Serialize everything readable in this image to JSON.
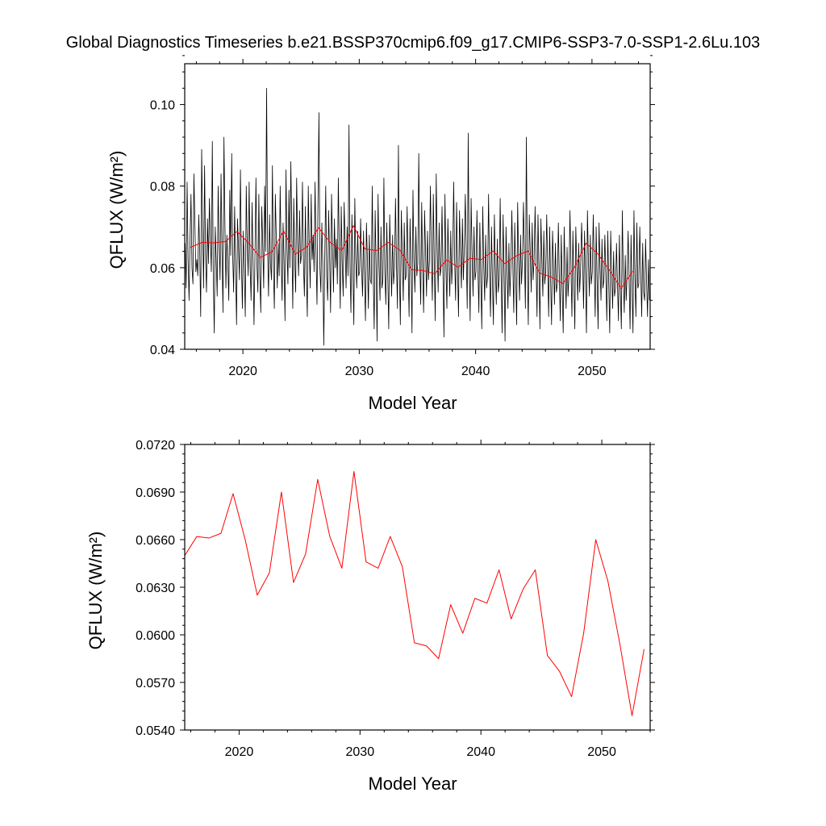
{
  "title": "Global Diagnostics Timeseries b.e21.BSSP370cmip6.f09_g17.CMIP6-SSP3-7.0-SSP1-2.6Lu.103",
  "colors": {
    "monthly": "#000000",
    "annual": "#ff0000",
    "frame": "#000000"
  },
  "chart_data": [
    {
      "type": "line",
      "xlabel": "Model Year",
      "ylabel": "QFLUX (W/m²)",
      "xlim": [
        2015,
        2055
      ],
      "ylim": [
        0.04,
        0.11
      ],
      "x_ticks": [
        2020,
        2030,
        2040,
        2050
      ],
      "y_ticks": [
        0.04,
        0.06,
        0.08,
        0.1
      ],
      "y_tick_labels": [
        "0.04",
        "0.06",
        "0.08",
        "0.10"
      ],
      "series": [
        {
          "color": "#000000",
          "x_start": 2015.04,
          "x_step": 0.0833,
          "values": [
            0.066,
            0.055,
            0.081,
            0.062,
            0.052,
            0.067,
            0.078,
            0.06,
            0.056,
            0.083,
            0.071,
            0.059,
            0.062,
            0.058,
            0.073,
            0.064,
            0.048,
            0.089,
            0.07,
            0.055,
            0.085,
            0.063,
            0.054,
            0.072,
            0.061,
            0.077,
            0.067,
            0.059,
            0.091,
            0.058,
            0.044,
            0.07,
            0.062,
            0.053,
            0.08,
            0.066,
            0.057,
            0.083,
            0.064,
            0.049,
            0.092,
            0.071,
            0.055,
            0.068,
            0.061,
            0.052,
            0.079,
            0.063,
            0.088,
            0.063,
            0.054,
            0.075,
            0.06,
            0.046,
            0.072,
            0.065,
            0.057,
            0.084,
            0.062,
            0.05,
            0.069,
            0.06,
            0.048,
            0.08,
            0.066,
            0.058,
            0.081,
            0.06,
            0.052,
            0.076,
            0.062,
            0.046,
            0.063,
            0.082,
            0.061,
            0.054,
            0.078,
            0.058,
            0.049,
            0.075,
            0.066,
            0.055,
            0.08,
            0.064,
            0.104,
            0.065,
            0.053,
            0.073,
            0.061,
            0.057,
            0.085,
            0.06,
            0.05,
            0.078,
            0.067,
            0.055,
            0.066,
            0.058,
            0.08,
            0.063,
            0.052,
            0.071,
            0.061,
            0.047,
            0.084,
            0.065,
            0.056,
            0.079,
            0.06,
            0.086,
            0.068,
            0.05,
            0.077,
            0.062,
            0.054,
            0.082,
            0.066,
            0.058,
            0.074,
            0.061,
            0.063,
            0.081,
            0.061,
            0.053,
            0.075,
            0.059,
            0.048,
            0.08,
            0.065,
            0.055,
            0.078,
            0.062,
            0.068,
            0.059,
            0.081,
            0.063,
            0.051,
            0.076,
            0.098,
            0.06,
            0.054,
            0.071,
            0.061,
            0.041,
            0.062,
            0.08,
            0.058,
            0.052,
            0.074,
            0.063,
            0.049,
            0.078,
            0.066,
            0.054,
            0.072,
            0.06,
            0.067,
            0.056,
            0.082,
            0.064,
            0.05,
            0.075,
            0.061,
            0.053,
            0.076,
            0.066,
            0.055,
            0.07,
            0.058,
            0.095,
            0.061,
            0.049,
            0.073,
            0.06,
            0.046,
            0.077,
            0.062,
            0.055,
            0.069,
            0.058,
            0.059,
            0.072,
            0.06,
            0.053,
            0.069,
            0.058,
            0.047,
            0.071,
            0.062,
            0.05,
            0.068,
            0.057,
            0.056,
            0.08,
            0.058,
            0.045,
            0.074,
            0.06,
            0.042,
            0.078,
            0.061,
            0.052,
            0.07,
            0.055,
            0.057,
            0.082,
            0.059,
            0.051,
            0.071,
            0.058,
            0.045,
            0.073,
            0.062,
            0.053,
            0.068,
            0.056,
            0.06,
            0.077,
            0.061,
            0.05,
            0.09,
            0.059,
            0.046,
            0.074,
            0.063,
            0.052,
            0.071,
            0.057,
            0.058,
            0.075,
            0.06,
            0.048,
            0.072,
            0.061,
            0.044,
            0.079,
            0.062,
            0.054,
            0.07,
            0.058,
            0.061,
            0.088,
            0.062,
            0.051,
            0.076,
            0.06,
            0.049,
            0.074,
            0.064,
            0.053,
            0.069,
            0.057,
            0.062,
            0.08,
            0.063,
            0.052,
            0.078,
            0.061,
            0.047,
            0.083,
            0.065,
            0.054,
            0.071,
            0.058,
            0.06,
            0.075,
            0.058,
            0.043,
            0.078,
            0.061,
            0.05,
            0.072,
            0.062,
            0.053,
            0.069,
            0.056,
            0.063,
            0.081,
            0.062,
            0.052,
            0.076,
            0.06,
            0.048,
            0.074,
            0.064,
            0.055,
            0.072,
            0.057,
            0.065,
            0.078,
            0.063,
            0.05,
            0.093,
            0.061,
            0.047,
            0.077,
            0.064,
            0.053,
            0.07,
            0.057,
            0.059,
            0.074,
            0.06,
            0.049,
            0.071,
            0.057,
            0.045,
            0.075,
            0.061,
            0.052,
            0.068,
            0.055,
            0.058,
            0.078,
            0.059,
            0.048,
            0.07,
            0.057,
            0.046,
            0.073,
            0.06,
            0.051,
            0.067,
            0.054,
            0.057,
            0.077,
            0.058,
            0.044,
            0.073,
            0.059,
            0.042,
            0.07,
            0.06,
            0.05,
            0.066,
            0.053,
            0.06,
            0.074,
            0.061,
            0.049,
            0.071,
            0.058,
            0.046,
            0.076,
            0.062,
            0.052,
            0.068,
            0.056,
            0.062,
            0.076,
            0.063,
            0.05,
            0.092,
            0.06,
            0.046,
            0.073,
            0.064,
            0.054,
            0.071,
            0.057,
            0.062,
            0.075,
            0.061,
            0.048,
            0.073,
            0.06,
            0.045,
            0.072,
            0.062,
            0.053,
            0.069,
            0.056,
            0.059,
            0.073,
            0.06,
            0.048,
            0.07,
            0.057,
            0.046,
            0.069,
            0.061,
            0.051,
            0.066,
            0.054,
            0.056,
            0.071,
            0.058,
            0.047,
            0.068,
            0.055,
            0.044,
            0.07,
            0.059,
            0.05,
            0.065,
            0.053,
            0.058,
            0.074,
            0.06,
            0.048,
            0.069,
            0.057,
            0.045,
            0.07,
            0.061,
            0.052,
            0.066,
            0.054,
            0.06,
            0.071,
            0.062,
            0.05,
            0.069,
            0.058,
            0.044,
            0.074,
            0.062,
            0.053,
            0.068,
            0.056,
            0.059,
            0.073,
            0.061,
            0.048,
            0.07,
            0.057,
            0.045,
            0.071,
            0.06,
            0.052,
            0.067,
            0.055,
            0.057,
            0.068,
            0.058,
            0.047,
            0.069,
            0.056,
            0.044,
            0.069,
            0.059,
            0.05,
            0.064,
            0.053,
            0.055,
            0.066,
            0.056,
            0.047,
            0.068,
            0.054,
            0.045,
            0.074,
            0.058,
            0.049,
            0.063,
            0.052,
            0.059,
            0.069,
            0.057,
            0.045,
            0.068,
            0.055,
            0.044,
            0.074,
            0.058,
            0.048,
            0.071,
            0.055,
            0.056,
            0.07,
            0.059,
            0.048,
            0.066,
            0.054,
            0.052,
            0.067,
            0.057,
            0.048,
            0.062,
            0.052
          ]
        },
        {
          "color": "#ff0000",
          "x_start": 2015.5,
          "x_step": 1,
          "values": [
            0.065,
            0.0662,
            0.0661,
            0.0664,
            0.0689,
            0.066,
            0.0625,
            0.0639,
            0.069,
            0.0633,
            0.0651,
            0.0698,
            0.0662,
            0.0642,
            0.0703,
            0.0646,
            0.0642,
            0.0662,
            0.0643,
            0.0595,
            0.0593,
            0.0585,
            0.0619,
            0.0601,
            0.0623,
            0.062,
            0.0641,
            0.061,
            0.0629,
            0.0641,
            0.0587,
            0.0577,
            0.0561,
            0.0601,
            0.066,
            0.0634,
            0.0594,
            0.0549,
            0.0591
          ]
        }
      ]
    },
    {
      "type": "line",
      "xlabel": "Model Year",
      "ylabel": "QFLUX (W/m²)",
      "xlim": [
        2015.5,
        2054
      ],
      "ylim": [
        0.054,
        0.072
      ],
      "x_ticks": [
        2020,
        2030,
        2040,
        2050
      ],
      "y_ticks": [
        0.054,
        0.057,
        0.06,
        0.063,
        0.066,
        0.069,
        0.072
      ],
      "y_tick_labels": [
        "0.0540",
        "0.0570",
        "0.0600",
        "0.0630",
        "0.0660",
        "0.0690",
        "0.0720"
      ],
      "series": [
        {
          "color": "#ff0000",
          "x_start": 2015.5,
          "x_step": 1,
          "values": [
            0.065,
            0.0662,
            0.0661,
            0.0664,
            0.0689,
            0.066,
            0.0625,
            0.0639,
            0.069,
            0.0633,
            0.0651,
            0.0698,
            0.0662,
            0.0642,
            0.0703,
            0.0646,
            0.0642,
            0.0662,
            0.0643,
            0.0595,
            0.0593,
            0.0585,
            0.0619,
            0.0601,
            0.0623,
            0.062,
            0.0641,
            0.061,
            0.0629,
            0.0641,
            0.0587,
            0.0577,
            0.0561,
            0.0601,
            0.066,
            0.0634,
            0.0594,
            0.0549,
            0.0591
          ]
        }
      ]
    }
  ]
}
